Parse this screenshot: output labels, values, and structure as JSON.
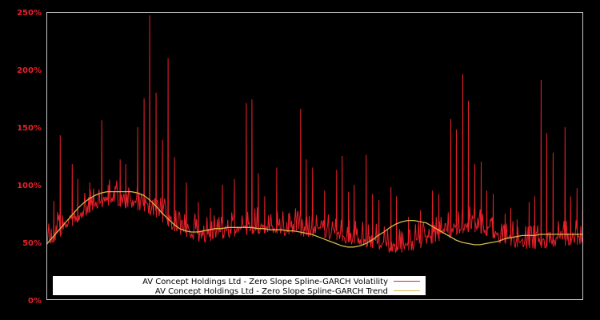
{
  "chart_data": {
    "type": "line",
    "title": "",
    "xlabel": "",
    "ylabel": "",
    "ylim": [
      0,
      250
    ],
    "y_ticks": [
      "0%",
      "50%",
      "100%",
      "150%",
      "200%",
      "250%"
    ],
    "y_tick_values": [
      0,
      50,
      100,
      150,
      200,
      250
    ],
    "grid": false,
    "legend_position": "lower-left inside plot",
    "background": "#000000",
    "series": [
      {
        "name": "AV Concept Holdings Ltd - Zero Slope Spline-GARCH Volatility",
        "color": "#e8202a",
        "baseline": [
          44,
          50,
          55,
          60,
          64,
          68,
          72,
          76,
          79,
          81,
          82,
          82,
          81,
          80,
          79,
          78,
          77,
          75,
          72,
          68,
          64,
          60,
          57,
          55,
          53,
          52,
          51,
          51,
          52,
          53,
          54,
          55,
          56,
          57,
          57,
          58,
          58,
          58,
          58,
          57,
          57,
          57,
          56,
          56,
          55,
          55,
          54,
          53,
          52,
          51,
          50,
          49,
          47,
          46,
          45,
          44,
          43,
          42,
          42,
          42,
          43,
          44,
          45,
          47,
          49,
          51,
          53,
          55,
          57,
          58,
          59,
          59,
          58,
          56,
          54,
          51,
          49,
          47,
          46,
          45,
          45,
          45,
          45,
          46,
          46,
          47,
          47,
          48,
          48,
          48
        ],
        "spikes": [
          {
            "i": 1,
            "v": 86
          },
          {
            "i": 2,
            "v": 143
          },
          {
            "i": 4,
            "v": 118
          },
          {
            "i": 5,
            "v": 105
          },
          {
            "i": 7,
            "v": 102
          },
          {
            "i": 9,
            "v": 156
          },
          {
            "i": 10,
            "v": 100
          },
          {
            "i": 12,
            "v": 122
          },
          {
            "i": 13,
            "v": 118
          },
          {
            "i": 15,
            "v": 150
          },
          {
            "i": 16,
            "v": 175
          },
          {
            "i": 17,
            "v": 247
          },
          {
            "i": 18,
            "v": 180
          },
          {
            "i": 19,
            "v": 139
          },
          {
            "i": 20,
            "v": 210
          },
          {
            "i": 21,
            "v": 124
          },
          {
            "i": 23,
            "v": 102
          },
          {
            "i": 25,
            "v": 85
          },
          {
            "i": 27,
            "v": 80
          },
          {
            "i": 29,
            "v": 100
          },
          {
            "i": 31,
            "v": 105
          },
          {
            "i": 33,
            "v": 171
          },
          {
            "i": 34,
            "v": 174
          },
          {
            "i": 35,
            "v": 110
          },
          {
            "i": 36,
            "v": 90
          },
          {
            "i": 38,
            "v": 115
          },
          {
            "i": 40,
            "v": 75
          },
          {
            "i": 42,
            "v": 166
          },
          {
            "i": 43,
            "v": 122
          },
          {
            "i": 44,
            "v": 115
          },
          {
            "i": 46,
            "v": 95
          },
          {
            "i": 48,
            "v": 113
          },
          {
            "i": 49,
            "v": 125
          },
          {
            "i": 50,
            "v": 94
          },
          {
            "i": 51,
            "v": 100
          },
          {
            "i": 53,
            "v": 126
          },
          {
            "i": 54,
            "v": 92
          },
          {
            "i": 55,
            "v": 87
          },
          {
            "i": 57,
            "v": 98
          },
          {
            "i": 58,
            "v": 90
          },
          {
            "i": 60,
            "v": 72
          },
          {
            "i": 62,
            "v": 78
          },
          {
            "i": 64,
            "v": 95
          },
          {
            "i": 65,
            "v": 92
          },
          {
            "i": 67,
            "v": 157
          },
          {
            "i": 68,
            "v": 148
          },
          {
            "i": 69,
            "v": 196
          },
          {
            "i": 70,
            "v": 173
          },
          {
            "i": 71,
            "v": 118
          },
          {
            "i": 72,
            "v": 120
          },
          {
            "i": 73,
            "v": 95
          },
          {
            "i": 74,
            "v": 92
          },
          {
            "i": 76,
            "v": 75
          },
          {
            "i": 77,
            "v": 80
          },
          {
            "i": 78,
            "v": 70
          },
          {
            "i": 80,
            "v": 85
          },
          {
            "i": 81,
            "v": 90
          },
          {
            "i": 82,
            "v": 191
          },
          {
            "i": 83,
            "v": 145
          },
          {
            "i": 84,
            "v": 128
          },
          {
            "i": 86,
            "v": 150
          },
          {
            "i": 87,
            "v": 90
          },
          {
            "i": 88,
            "v": 97
          },
          {
            "i": 89,
            "v": 78
          }
        ]
      },
      {
        "name": "AV Concept Holdings Ltd - Zero Slope Spline-GARCH Trend",
        "color": "#d4b84a",
        "values": [
          49,
          55,
          61,
          67,
          73,
          79,
          84,
          88,
          91,
          93,
          94,
          94,
          94,
          94,
          94,
          93,
          91,
          87,
          82,
          76,
          71,
          66,
          62,
          60,
          59,
          59,
          60,
          61,
          62,
          62,
          63,
          63,
          63,
          63,
          63,
          62,
          62,
          61,
          61,
          61,
          60,
          60,
          59,
          58,
          57,
          55,
          53,
          51,
          49,
          47,
          46,
          46,
          47,
          49,
          52,
          56,
          59,
          63,
          66,
          68,
          69,
          69,
          68,
          67,
          64,
          61,
          58,
          55,
          52,
          50,
          49,
          48,
          48,
          49,
          50,
          51,
          53,
          54,
          55,
          56,
          56,
          56,
          57,
          57,
          57,
          57,
          57,
          57,
          57,
          57
        ]
      }
    ]
  },
  "legend": {
    "items": [
      {
        "label": "AV Concept Holdings Ltd - Zero Slope Spline-GARCH Volatility",
        "color": "#e8202a"
      },
      {
        "label": "AV Concept Holdings Ltd - Zero Slope Spline-GARCH Trend",
        "color": "#d4b84a"
      }
    ]
  }
}
